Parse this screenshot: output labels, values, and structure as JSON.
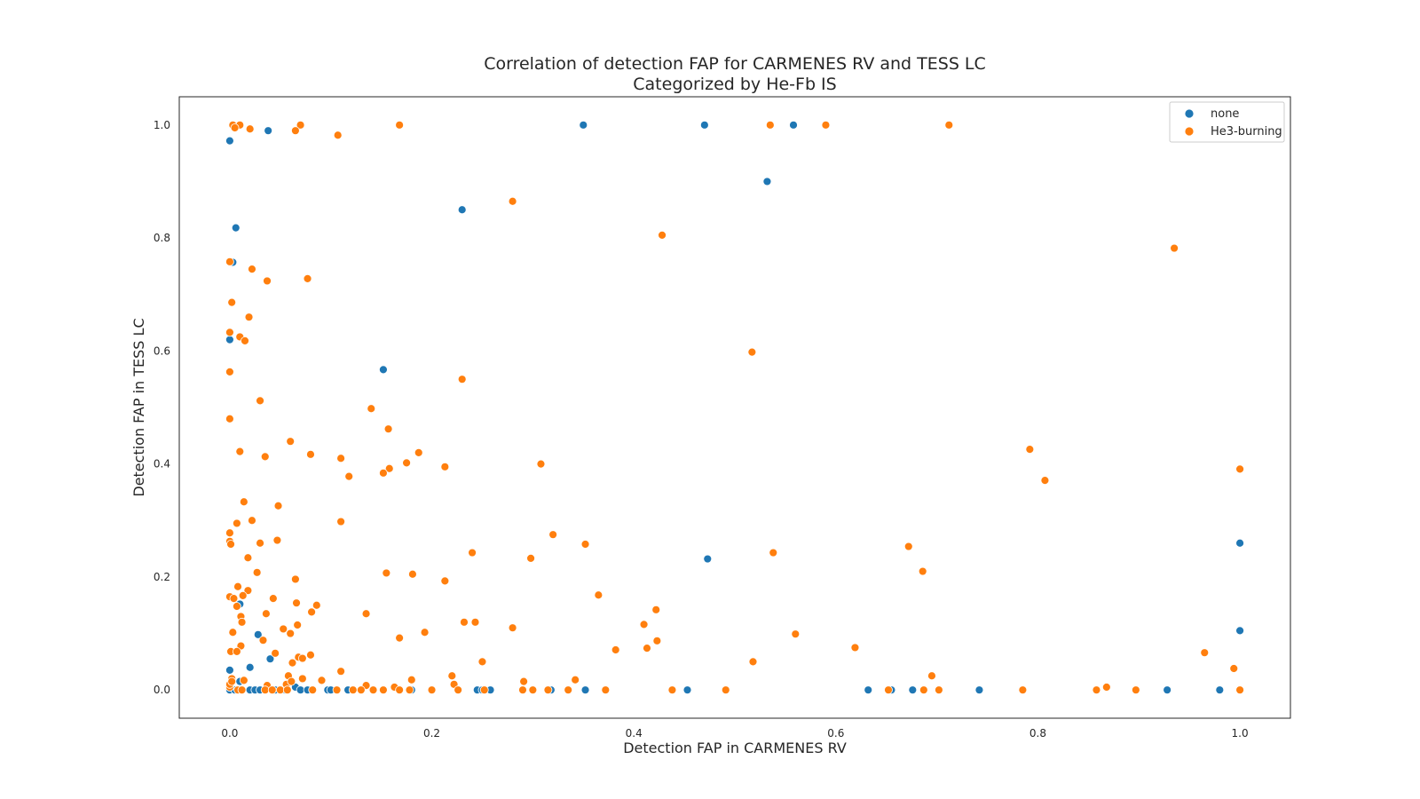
{
  "chart_data": {
    "type": "scatter",
    "title": "Correlation of detection FAP for CARMENES RV and TESS LC",
    "subtitle": "Categorized by He-Fb IS",
    "xlabel": "Detection FAP in CARMENES RV",
    "ylabel": "Detection FAP in TESS LC",
    "xlim": [
      -0.05,
      1.05
    ],
    "ylim": [
      -0.05,
      1.05
    ],
    "xticks": [
      "0.0",
      "0.2",
      "0.4",
      "0.6",
      "0.8",
      "1.0"
    ],
    "yticks": [
      "0.0",
      "0.2",
      "0.4",
      "0.6",
      "0.8",
      "1.0"
    ],
    "grid": false,
    "legend_position": "top-right",
    "series": [
      {
        "name": "none",
        "color": "#1f77b4",
        "points": [
          [
            0.0,
            0.972
          ],
          [
            0.038,
            0.99
          ],
          [
            0.35,
            1.0
          ],
          [
            0.47,
            1.0
          ],
          [
            0.558,
            1.0
          ],
          [
            0.532,
            0.9
          ],
          [
            0.23,
            0.85
          ],
          [
            0.006,
            0.818
          ],
          [
            0.003,
            0.757
          ],
          [
            0.0,
            0.62
          ],
          [
            0.152,
            0.567
          ],
          [
            0.473,
            0.232
          ],
          [
            1.0,
            0.26
          ],
          [
            1.0,
            0.105
          ],
          [
            0.01,
            0.152
          ],
          [
            0.028,
            0.098
          ],
          [
            0.04,
            0.055
          ],
          [
            0.02,
            0.04
          ],
          [
            0.0,
            0.035
          ],
          [
            0.01,
            0.015
          ],
          [
            0.065,
            0.005
          ],
          [
            0.0,
            0.0
          ],
          [
            0.005,
            0.0
          ],
          [
            0.02,
            0.0
          ],
          [
            0.025,
            0.0
          ],
          [
            0.03,
            0.0
          ],
          [
            0.045,
            0.0
          ],
          [
            0.055,
            0.0
          ],
          [
            0.07,
            0.0
          ],
          [
            0.077,
            0.0
          ],
          [
            0.097,
            0.0
          ],
          [
            0.1,
            0.0
          ],
          [
            0.117,
            0.0
          ],
          [
            0.18,
            0.0
          ],
          [
            0.245,
            0.0
          ],
          [
            0.25,
            0.0
          ],
          [
            0.258,
            0.0
          ],
          [
            0.318,
            0.0
          ],
          [
            0.352,
            0.0
          ],
          [
            0.453,
            0.0
          ],
          [
            0.632,
            0.0
          ],
          [
            0.655,
            0.0
          ],
          [
            0.676,
            0.0
          ],
          [
            0.742,
            0.0
          ],
          [
            0.928,
            0.0
          ],
          [
            0.98,
            0.0
          ]
        ]
      },
      {
        "name": "He3-burning",
        "color": "#ff7f0e",
        "points": [
          [
            0.003,
            1.0
          ],
          [
            0.01,
            1.0
          ],
          [
            0.005,
            0.995
          ],
          [
            0.02,
            0.993
          ],
          [
            0.07,
            1.0
          ],
          [
            0.065,
            0.99
          ],
          [
            0.107,
            0.982
          ],
          [
            0.168,
            1.0
          ],
          [
            0.535,
            1.0
          ],
          [
            0.59,
            1.0
          ],
          [
            0.712,
            1.0
          ],
          [
            0.28,
            0.865
          ],
          [
            0.428,
            0.805
          ],
          [
            0.935,
            0.782
          ],
          [
            0.0,
            0.758
          ],
          [
            0.022,
            0.745
          ],
          [
            0.037,
            0.724
          ],
          [
            0.077,
            0.728
          ],
          [
            0.002,
            0.686
          ],
          [
            0.019,
            0.66
          ],
          [
            0.0,
            0.633
          ],
          [
            0.01,
            0.625
          ],
          [
            0.015,
            0.618
          ],
          [
            0.517,
            0.598
          ],
          [
            0.0,
            0.563
          ],
          [
            0.23,
            0.55
          ],
          [
            0.03,
            0.512
          ],
          [
            0.14,
            0.498
          ],
          [
            0.0,
            0.48
          ],
          [
            0.157,
            0.462
          ],
          [
            0.06,
            0.44
          ],
          [
            0.01,
            0.422
          ],
          [
            0.035,
            0.413
          ],
          [
            0.08,
            0.417
          ],
          [
            0.187,
            0.42
          ],
          [
            0.11,
            0.41
          ],
          [
            0.175,
            0.402
          ],
          [
            0.213,
            0.395
          ],
          [
            0.158,
            0.392
          ],
          [
            0.152,
            0.384
          ],
          [
            0.118,
            0.378
          ],
          [
            0.308,
            0.4
          ],
          [
            0.792,
            0.426
          ],
          [
            0.807,
            0.371
          ],
          [
            1.0,
            0.391
          ],
          [
            0.014,
            0.333
          ],
          [
            0.048,
            0.326
          ],
          [
            0.007,
            0.295
          ],
          [
            0.022,
            0.3
          ],
          [
            0.11,
            0.298
          ],
          [
            0.0,
            0.278
          ],
          [
            0.0,
            0.263
          ],
          [
            0.001,
            0.258
          ],
          [
            0.03,
            0.26
          ],
          [
            0.047,
            0.265
          ],
          [
            0.32,
            0.275
          ],
          [
            0.352,
            0.258
          ],
          [
            0.24,
            0.243
          ],
          [
            0.538,
            0.243
          ],
          [
            0.672,
            0.254
          ],
          [
            0.018,
            0.234
          ],
          [
            0.298,
            0.233
          ],
          [
            0.027,
            0.208
          ],
          [
            0.155,
            0.207
          ],
          [
            0.181,
            0.205
          ],
          [
            0.686,
            0.21
          ],
          [
            0.065,
            0.196
          ],
          [
            0.213,
            0.193
          ],
          [
            0.008,
            0.183
          ],
          [
            0.018,
            0.176
          ],
          [
            0.013,
            0.167
          ],
          [
            0.0,
            0.165
          ],
          [
            0.004,
            0.162
          ],
          [
            0.043,
            0.162
          ],
          [
            0.365,
            0.168
          ],
          [
            0.007,
            0.148
          ],
          [
            0.066,
            0.154
          ],
          [
            0.086,
            0.15
          ],
          [
            0.081,
            0.138
          ],
          [
            0.036,
            0.135
          ],
          [
            0.011,
            0.13
          ],
          [
            0.135,
            0.135
          ],
          [
            0.422,
            0.142
          ],
          [
            0.012,
            0.12
          ],
          [
            0.232,
            0.12
          ],
          [
            0.243,
            0.12
          ],
          [
            0.067,
            0.115
          ],
          [
            0.053,
            0.108
          ],
          [
            0.06,
            0.1
          ],
          [
            0.003,
            0.102
          ],
          [
            0.193,
            0.102
          ],
          [
            0.28,
            0.11
          ],
          [
            0.41,
            0.116
          ],
          [
            0.56,
            0.099
          ],
          [
            0.168,
            0.092
          ],
          [
            0.033,
            0.088
          ],
          [
            0.423,
            0.087
          ],
          [
            0.382,
            0.071
          ],
          [
            0.413,
            0.074
          ],
          [
            0.619,
            0.075
          ],
          [
            0.011,
            0.078
          ],
          [
            0.001,
            0.068
          ],
          [
            0.007,
            0.068
          ],
          [
            0.045,
            0.065
          ],
          [
            0.08,
            0.062
          ],
          [
            0.068,
            0.058
          ],
          [
            0.072,
            0.056
          ],
          [
            0.062,
            0.048
          ],
          [
            0.25,
            0.05
          ],
          [
            0.518,
            0.05
          ],
          [
            0.965,
            0.066
          ],
          [
            0.994,
            0.038
          ],
          [
            0.11,
            0.033
          ],
          [
            0.22,
            0.025
          ],
          [
            0.072,
            0.02
          ],
          [
            0.058,
            0.025
          ],
          [
            0.002,
            0.02
          ],
          [
            0.014,
            0.017
          ],
          [
            0.091,
            0.017
          ],
          [
            0.18,
            0.018
          ],
          [
            0.342,
            0.018
          ],
          [
            0.695,
            0.025
          ],
          [
            0.222,
            0.01
          ],
          [
            0.037,
            0.008
          ],
          [
            0.056,
            0.01
          ],
          [
            0.061,
            0.015
          ],
          [
            0.135,
            0.008
          ],
          [
            0.163,
            0.005
          ],
          [
            0.868,
            0.005
          ],
          [
            0.0,
            0.005
          ],
          [
            0.0,
            0.01
          ],
          [
            0.008,
            0.0
          ],
          [
            0.012,
            0.0
          ],
          [
            0.035,
            0.0
          ],
          [
            0.042,
            0.0
          ],
          [
            0.05,
            0.0
          ],
          [
            0.057,
            0.0
          ],
          [
            0.082,
            0.0
          ],
          [
            0.106,
            0.0
          ],
          [
            0.122,
            0.0
          ],
          [
            0.13,
            0.0
          ],
          [
            0.142,
            0.0
          ],
          [
            0.152,
            0.0
          ],
          [
            0.168,
            0.0
          ],
          [
            0.178,
            0.0
          ],
          [
            0.2,
            0.0
          ],
          [
            0.226,
            0.0
          ],
          [
            0.252,
            0.0
          ],
          [
            0.29,
            0.0
          ],
          [
            0.3,
            0.0
          ],
          [
            0.315,
            0.0
          ],
          [
            0.335,
            0.0
          ],
          [
            0.372,
            0.0
          ],
          [
            0.438,
            0.0
          ],
          [
            0.491,
            0.0
          ],
          [
            0.652,
            0.0
          ],
          [
            0.687,
            0.0
          ],
          [
            0.702,
            0.0
          ],
          [
            0.785,
            0.0
          ],
          [
            0.858,
            0.0
          ],
          [
            0.897,
            0.0
          ],
          [
            1.0,
            0.0
          ],
          [
            0.291,
            0.015
          ],
          [
            0.002,
            0.015
          ]
        ]
      }
    ]
  }
}
